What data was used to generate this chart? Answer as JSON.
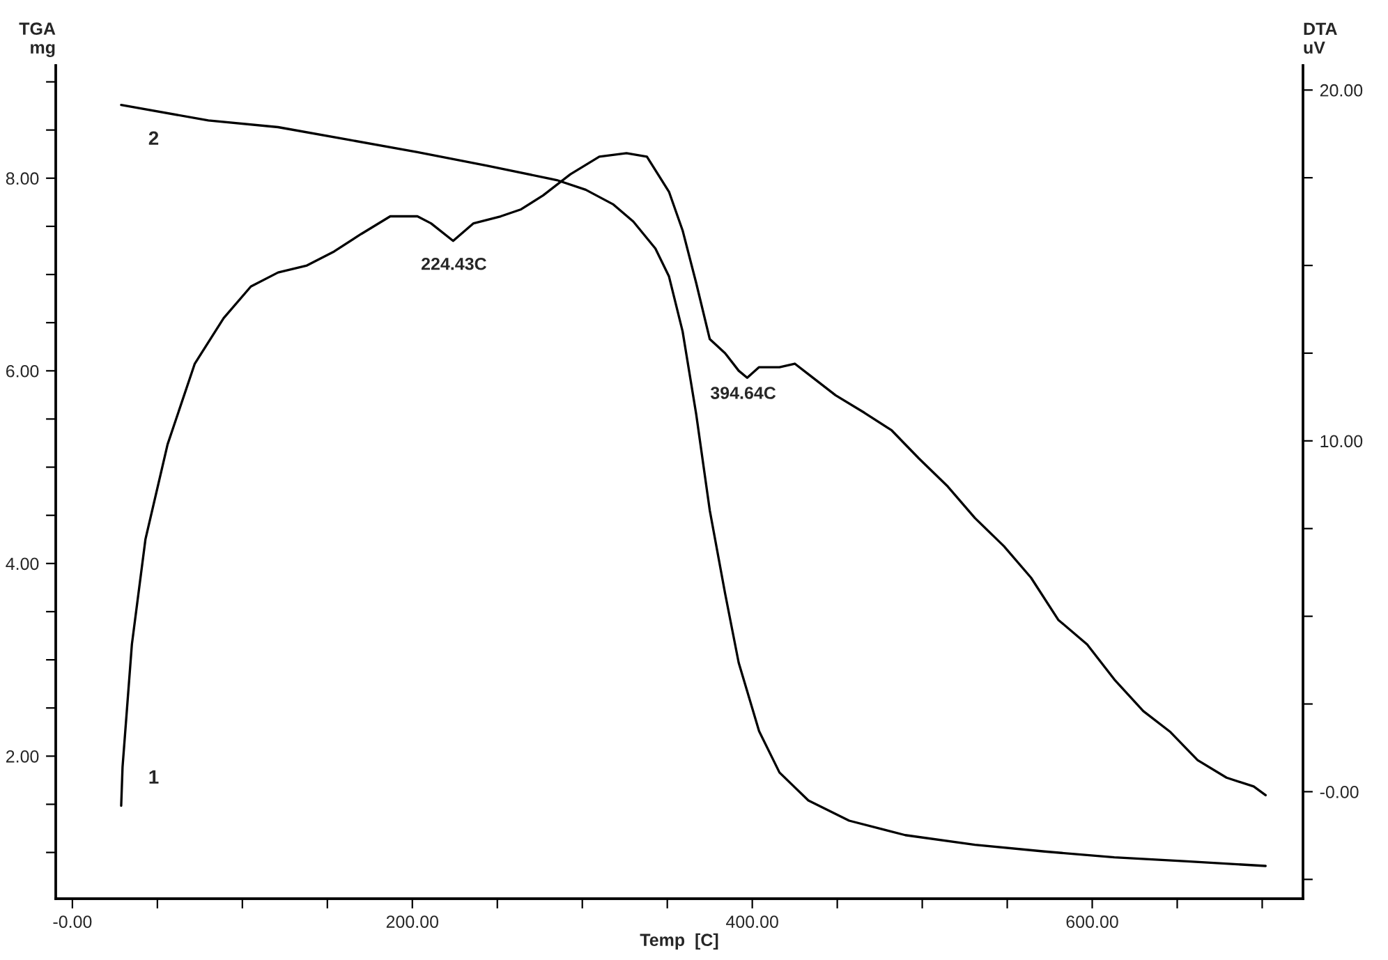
{
  "chart_data": {
    "type": "line",
    "xlabel": "Temp  [C]",
    "ylabel": "TGA\nmg",
    "y2label": "DTA\nuV",
    "xlim": [
      -9.8,
      724
    ],
    "xticks": [
      {
        "value": 0,
        "label": "-0.00"
      },
      {
        "value": 50,
        "label": null
      },
      {
        "value": 100,
        "label": null
      },
      {
        "value": 150,
        "label": null
      },
      {
        "value": 200,
        "label": "200.00"
      },
      {
        "value": 250,
        "label": null
      },
      {
        "value": 300,
        "label": null
      },
      {
        "value": 350,
        "label": null
      },
      {
        "value": 400,
        "label": "400.00"
      },
      {
        "value": 450,
        "label": null
      },
      {
        "value": 500,
        "label": null
      },
      {
        "value": 550,
        "label": null
      },
      {
        "value": 600,
        "label": "600.00"
      },
      {
        "value": 650,
        "label": null
      },
      {
        "value": 700,
        "label": null
      }
    ],
    "ylim": [
      0.52,
      9.17
    ],
    "yticks": [
      {
        "value": 1.0,
        "label": null
      },
      {
        "value": 1.5,
        "label": null
      },
      {
        "value": 2,
        "label": "2.00"
      },
      {
        "value": 2.5,
        "label": null
      },
      {
        "value": 3,
        "label": null
      },
      {
        "value": 3.5,
        "label": null
      },
      {
        "value": 4,
        "label": "4.00"
      },
      {
        "value": 4.5,
        "label": null
      },
      {
        "value": 5,
        "label": null
      },
      {
        "value": 5.5,
        "label": null
      },
      {
        "value": 6,
        "label": "6.00"
      },
      {
        "value": 6.5,
        "label": null
      },
      {
        "value": 7,
        "label": null
      },
      {
        "value": 7.5,
        "label": null
      },
      {
        "value": 8,
        "label": "8.00"
      },
      {
        "value": 8.5,
        "label": null
      },
      {
        "value": 9,
        "label": null
      }
    ],
    "y2lim": [
      -3.05,
      20.7
    ],
    "y2ticks": [
      {
        "value": -2.5,
        "label": null
      },
      {
        "value": 0,
        "label": "-0.00"
      },
      {
        "value": 2.5,
        "label": null
      },
      {
        "value": 5,
        "label": null
      },
      {
        "value": 7.5,
        "label": null
      },
      {
        "value": 10,
        "label": "10.00"
      },
      {
        "value": 12.5,
        "label": null
      },
      {
        "value": 15,
        "label": null
      },
      {
        "value": 17.5,
        "label": null
      },
      {
        "value": 20,
        "label": "20.00"
      }
    ],
    "series": [
      {
        "name": "2",
        "color": "#000000",
        "x": [
          28.7,
          80,
          121,
          162,
          203,
          244,
          285,
          302,
          318,
          330,
          343,
          351,
          359,
          367,
          375,
          384,
          392,
          404,
          416,
          433,
          457,
          490,
          531,
          572,
          613,
          654,
          702
        ],
        "values": [
          8.76,
          8.6,
          8.53,
          8.4,
          8.27,
          8.13,
          7.98,
          7.88,
          7.73,
          7.55,
          7.27,
          6.98,
          6.41,
          5.55,
          4.55,
          3.69,
          2.97,
          2.26,
          1.83,
          1.54,
          1.33,
          1.18,
          1.08,
          1.01,
          0.95,
          0.91,
          0.86
        ]
      },
      {
        "name": "1",
        "color": "#000000",
        "axis": "y2",
        "x": [
          28.7,
          29.5,
          35,
          43,
          56,
          72,
          89,
          105,
          121,
          138,
          154,
          170,
          187,
          203,
          211,
          224,
          236,
          252,
          264,
          277,
          293,
          310,
          326,
          338,
          351,
          359,
          367,
          375,
          384,
          392,
          397,
          404,
          416,
          425,
          433,
          449,
          466,
          482,
          498,
          515,
          531,
          548,
          564,
          580,
          597,
          613,
          630,
          646,
          662,
          679,
          695,
          702
        ],
        "values": [
          -0.4,
          0.7,
          4.2,
          7.2,
          9.9,
          12.2,
          13.5,
          14.4,
          14.8,
          15.0,
          15.4,
          15.9,
          16.4,
          16.4,
          16.2,
          15.7,
          16.2,
          16.4,
          16.6,
          17.0,
          17.6,
          18.1,
          18.2,
          18.1,
          17.1,
          16.0,
          14.5,
          12.9,
          12.5,
          12.0,
          11.8,
          12.1,
          12.1,
          12.2,
          11.9,
          11.3,
          10.8,
          10.3,
          9.5,
          8.7,
          7.8,
          7.0,
          6.1,
          4.9,
          4.2,
          3.2,
          2.3,
          1.7,
          0.9,
          0.4,
          0.15,
          -0.1
        ]
      }
    ],
    "annotations": [
      {
        "text": "224.43C",
        "x": 224.43,
        "y": 7.3
      },
      {
        "text": "394.64C",
        "x": 394.64,
        "y": 5.96
      }
    ]
  }
}
